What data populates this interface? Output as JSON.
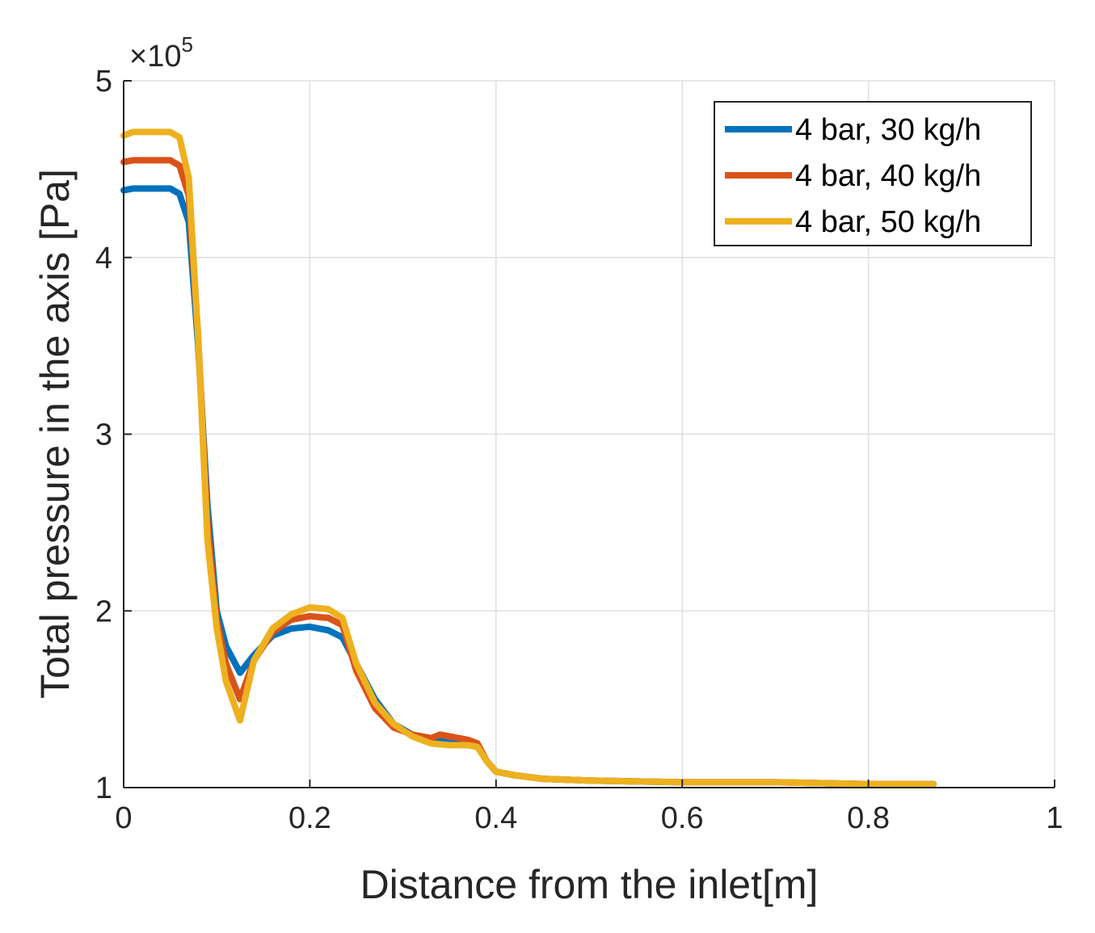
{
  "chart_data": {
    "type": "line",
    "title": "",
    "xlabel": "Distance from the inlet[m]",
    "ylabel": "Total pressure in the axis [Pa]",
    "y_exponent_prefix": "×10",
    "y_exponent": "5",
    "xlim": [
      0,
      1
    ],
    "ylim": [
      1,
      5
    ],
    "xticks": [
      0,
      0.2,
      0.4,
      0.6,
      0.8,
      1
    ],
    "xtick_labels": [
      "0",
      "0.2",
      "0.4",
      "0.6",
      "0.8",
      "1"
    ],
    "yticks": [
      1,
      2,
      3,
      4,
      5
    ],
    "ytick_labels": [
      "1",
      "2",
      "3",
      "4",
      "5"
    ],
    "grid": true,
    "legend_position": "top-right",
    "series": [
      {
        "name": "4 bar, 30 kg/h",
        "color": "#0072BD",
        "x": [
          0,
          0.01,
          0.03,
          0.05,
          0.06,
          0.07,
          0.08,
          0.09,
          0.1,
          0.11,
          0.125,
          0.14,
          0.16,
          0.18,
          0.2,
          0.22,
          0.235,
          0.25,
          0.27,
          0.29,
          0.31,
          0.33,
          0.35,
          0.37,
          0.38,
          0.39,
          0.4,
          0.42,
          0.45,
          0.5,
          0.6,
          0.7,
          0.8,
          0.87
        ],
        "values": [
          4.38,
          4.39,
          4.39,
          4.39,
          4.36,
          4.2,
          3.5,
          2.6,
          2.0,
          1.8,
          1.65,
          1.75,
          1.86,
          1.9,
          1.91,
          1.89,
          1.85,
          1.7,
          1.5,
          1.36,
          1.3,
          1.28,
          1.27,
          1.26,
          1.24,
          1.15,
          1.09,
          1.07,
          1.05,
          1.04,
          1.03,
          1.03,
          1.02,
          1.02
        ]
      },
      {
        "name": "4 bar, 40 kg/h",
        "color": "#D95319",
        "x": [
          0,
          0.01,
          0.03,
          0.05,
          0.06,
          0.07,
          0.08,
          0.09,
          0.1,
          0.11,
          0.125,
          0.14,
          0.16,
          0.18,
          0.2,
          0.22,
          0.235,
          0.25,
          0.27,
          0.29,
          0.31,
          0.33,
          0.34,
          0.35,
          0.37,
          0.38,
          0.39,
          0.4,
          0.42,
          0.45,
          0.5,
          0.6,
          0.7,
          0.8,
          0.87
        ],
        "values": [
          4.54,
          4.55,
          4.55,
          4.55,
          4.52,
          4.35,
          3.55,
          2.5,
          1.95,
          1.7,
          1.5,
          1.72,
          1.88,
          1.95,
          1.97,
          1.96,
          1.92,
          1.66,
          1.45,
          1.34,
          1.3,
          1.28,
          1.3,
          1.29,
          1.27,
          1.25,
          1.15,
          1.09,
          1.07,
          1.05,
          1.04,
          1.03,
          1.03,
          1.02,
          1.02
        ]
      },
      {
        "name": "4 bar, 50 kg/h",
        "color": "#EDB120",
        "x": [
          0,
          0.01,
          0.03,
          0.05,
          0.06,
          0.07,
          0.08,
          0.09,
          0.1,
          0.11,
          0.125,
          0.14,
          0.16,
          0.18,
          0.2,
          0.22,
          0.235,
          0.25,
          0.27,
          0.29,
          0.31,
          0.33,
          0.35,
          0.37,
          0.38,
          0.39,
          0.4,
          0.42,
          0.45,
          0.5,
          0.6,
          0.7,
          0.8,
          0.87
        ],
        "values": [
          4.69,
          4.71,
          4.71,
          4.71,
          4.68,
          4.45,
          3.55,
          2.4,
          1.9,
          1.6,
          1.38,
          1.72,
          1.9,
          1.98,
          2.02,
          2.01,
          1.96,
          1.7,
          1.48,
          1.36,
          1.29,
          1.25,
          1.24,
          1.24,
          1.23,
          1.15,
          1.09,
          1.07,
          1.05,
          1.04,
          1.03,
          1.03,
          1.02,
          1.02
        ]
      }
    ]
  }
}
